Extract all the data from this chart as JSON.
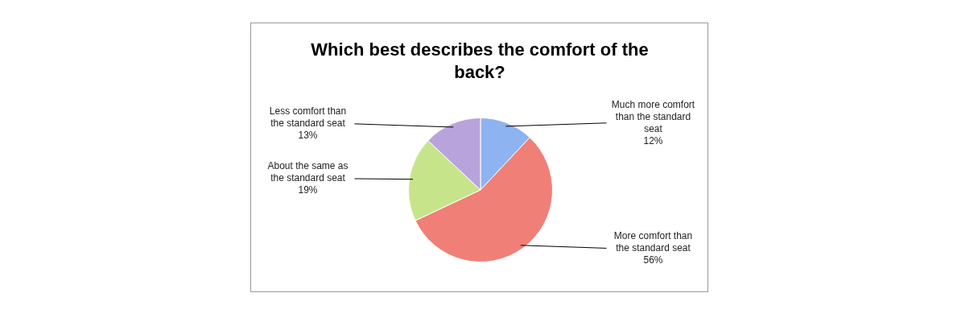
{
  "chart_data": {
    "type": "pie",
    "title": "Which best describes the comfort of the back?",
    "categories": [
      "Much more comfort than the standard seat",
      "More comfort than the standard seat",
      "About the same as the standard seat",
      "Less comfort than the standard seat"
    ],
    "values": [
      12,
      56,
      19,
      13
    ],
    "value_labels": [
      "12%",
      "56%",
      "19%",
      "13%"
    ],
    "colors": [
      "#8db3f0",
      "#f07f78",
      "#c6e58a",
      "#b9a3dc"
    ]
  }
}
